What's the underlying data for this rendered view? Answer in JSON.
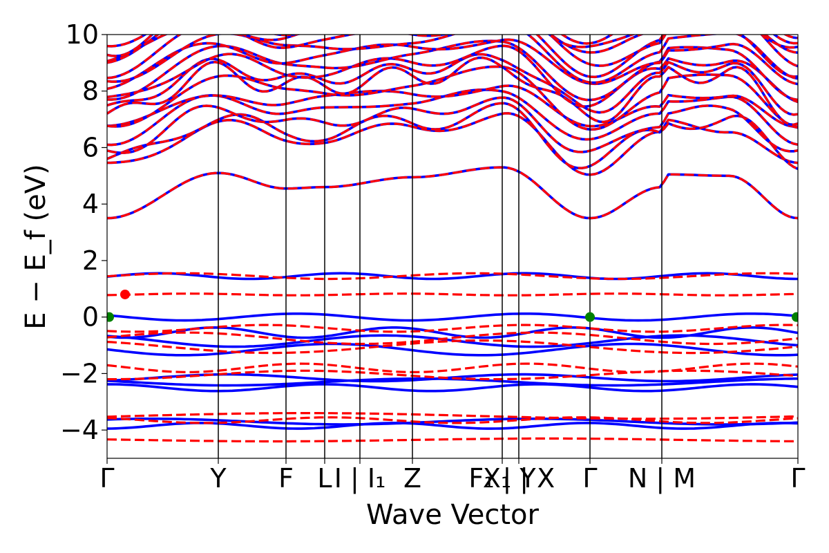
{
  "chart_data": {
    "type": "line",
    "title": "",
    "xlabel": "Wave Vector",
    "ylabel": "E − E_f (eV)",
    "ylim": [
      -5,
      10
    ],
    "y_ticks": [
      "−4",
      "−2",
      "0",
      "2",
      "4",
      "6",
      "8",
      "10"
    ],
    "y_tick_values": [
      -4,
      -2,
      0,
      2,
      4,
      6,
      8,
      10
    ],
    "x_range": [
      0,
      1
    ],
    "kpath_labels": [
      {
        "label": "Γ",
        "x": 0.0
      },
      {
        "label": "Y",
        "x": 0.161
      },
      {
        "label": "F",
        "x": 0.259
      },
      {
        "label": "L",
        "x": 0.315
      },
      {
        "label": "I | I₁",
        "x": 0.366
      },
      {
        "label": "Z",
        "x": 0.442
      },
      {
        "label": "F₁ | Y",
        "x": 0.572
      },
      {
        "label": "X₁ | X",
        "x": 0.596
      },
      {
        "label": "Γ",
        "x": 0.699
      },
      {
        "label": "N | M",
        "x": 0.803
      },
      {
        "label": "Γ",
        "x": 1.0
      }
    ],
    "vertical_lines": [
      0.161,
      0.259,
      0.315,
      0.366,
      0.442,
      0.572,
      0.596,
      0.699,
      0.803
    ],
    "grid": false,
    "series": [
      {
        "color": "#0000ff",
        "style": "solid",
        "bands_gap_region": [
          {
            "level": 0.0,
            "variation": 0.12
          },
          {
            "level": -0.55,
            "variation": 0.18
          },
          {
            "level": -0.85,
            "variation": 0.2
          },
          {
            "level": -1.15,
            "variation": 0.2
          },
          {
            "level": -2.15,
            "variation": 0.12
          },
          {
            "level": -2.3,
            "variation": 0.12
          },
          {
            "level": -2.5,
            "variation": 0.12
          },
          {
            "level": -3.7,
            "variation": 0.1
          },
          {
            "level": -3.85,
            "variation": 0.1
          },
          {
            "level": 1.45,
            "variation": 0.1
          }
        ]
      },
      {
        "color": "#ff0000",
        "style": "dashed",
        "bands_gap_region": [
          {
            "level": 0.8,
            "variation": 0.03
          },
          {
            "level": -0.4,
            "variation": 0.12
          },
          {
            "level": -0.75,
            "variation": 0.2
          },
          {
            "level": -1.05,
            "variation": 0.22
          },
          {
            "level": -1.8,
            "variation": 0.15
          },
          {
            "level": -2.05,
            "variation": 0.15
          },
          {
            "level": -3.5,
            "variation": 0.1
          },
          {
            "level": -3.65,
            "variation": 0.1
          },
          {
            "level": -4.35,
            "variation": 0.05
          },
          {
            "level": 1.45,
            "variation": 0.1
          }
        ]
      }
    ],
    "conduction_band_minimum": [
      {
        "x": 0.0,
        "y": 3.5
      },
      {
        "x": 0.161,
        "y": 5.1
      },
      {
        "x": 0.259,
        "y": 4.55
      },
      {
        "x": 0.315,
        "y": 4.6
      },
      {
        "x": 0.442,
        "y": 4.95
      },
      {
        "x": 0.572,
        "y": 5.3
      },
      {
        "x": 0.699,
        "y": 3.5
      },
      {
        "x": 0.803,
        "y": 4.6
      },
      {
        "x": 0.81,
        "y": 5.05
      },
      {
        "x": 0.9,
        "y": 5.0
      },
      {
        "x": 1.0,
        "y": 3.5
      }
    ],
    "markers": [
      {
        "x": 0.003,
        "y": 0.0,
        "color": "#008000"
      },
      {
        "x": 0.026,
        "y": 0.8,
        "color": "#ff0000"
      },
      {
        "x": 0.699,
        "y": 0.0,
        "color": "#008000"
      },
      {
        "x": 0.998,
        "y": 0.0,
        "color": "#008000"
      }
    ]
  }
}
